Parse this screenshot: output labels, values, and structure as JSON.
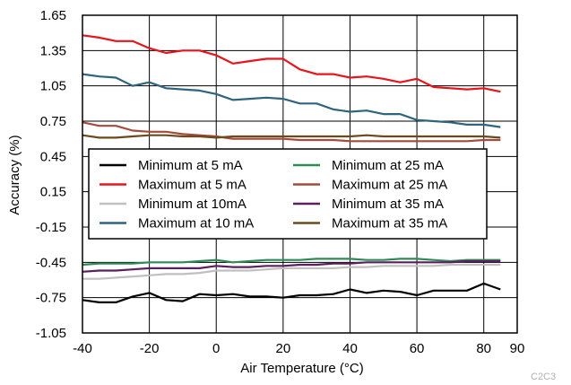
{
  "chart_data": {
    "type": "line",
    "xlabel": "Air Temperature (°C)",
    "ylabel": "Accuracy (%)",
    "xlim": [
      -40,
      90
    ],
    "ylim": [
      -1.05,
      1.65
    ],
    "x_ticks": [
      "-40",
      "-20",
      "0",
      "20",
      "40",
      "60",
      "80",
      "90"
    ],
    "x_tick_values": [
      -40,
      -20,
      0,
      20,
      40,
      60,
      80,
      90
    ],
    "y_ticks": [
      "1.65",
      "1.35",
      "1.05",
      "0.75",
      "0.45",
      "0.15",
      "-0.15",
      "-0.45",
      "-0.75",
      "-1.05"
    ],
    "y_tick_values": [
      1.65,
      1.35,
      1.05,
      0.75,
      0.45,
      0.15,
      -0.15,
      -0.45,
      -0.75,
      -1.05
    ],
    "grid": true,
    "legend_placement": "middle-left",
    "series": [
      {
        "name": "Minimum at 5 mA",
        "color": "#000000",
        "x": [
          -40,
          -35,
          -30,
          -25,
          -20,
          -15,
          -10,
          -5,
          0,
          5,
          10,
          15,
          20,
          25,
          30,
          35,
          40,
          45,
          50,
          55,
          60,
          65,
          70,
          75,
          80,
          85
        ],
        "y": [
          -0.77,
          -0.79,
          -0.79,
          -0.74,
          -0.71,
          -0.77,
          -0.78,
          -0.72,
          -0.73,
          -0.72,
          -0.74,
          -0.74,
          -0.75,
          -0.73,
          -0.73,
          -0.72,
          -0.68,
          -0.71,
          -0.69,
          -0.7,
          -0.73,
          -0.69,
          -0.69,
          -0.69,
          -0.63,
          -0.68
        ]
      },
      {
        "name": "Maximum at 5 mA",
        "color": "#e8141b",
        "x": [
          -40,
          -35,
          -30,
          -25,
          -20,
          -15,
          -10,
          -5,
          0,
          5,
          10,
          15,
          20,
          25,
          30,
          35,
          40,
          45,
          50,
          55,
          60,
          65,
          70,
          75,
          80,
          85
        ],
        "y": [
          1.48,
          1.46,
          1.43,
          1.43,
          1.37,
          1.33,
          1.35,
          1.35,
          1.31,
          1.24,
          1.26,
          1.28,
          1.28,
          1.19,
          1.15,
          1.15,
          1.12,
          1.13,
          1.11,
          1.08,
          1.11,
          1.04,
          1.03,
          1.02,
          1.03,
          1.0
        ]
      },
      {
        "name": "Minimum at 10mA",
        "color": "#c0c0c0",
        "x": [
          -40,
          -35,
          -30,
          -25,
          -20,
          -15,
          -10,
          -5,
          0,
          5,
          10,
          15,
          20,
          25,
          30,
          35,
          40,
          45,
          50,
          55,
          60,
          65,
          70,
          75,
          80,
          85
        ],
        "y": [
          -0.59,
          -0.59,
          -0.58,
          -0.57,
          -0.56,
          -0.55,
          -0.55,
          -0.54,
          -0.52,
          -0.52,
          -0.52,
          -0.51,
          -0.5,
          -0.5,
          -0.5,
          -0.5,
          -0.49,
          -0.49,
          -0.48,
          -0.48,
          -0.48,
          -0.48,
          -0.47,
          -0.47,
          -0.47,
          -0.47
        ]
      },
      {
        "name": "Maximum at 10 mA",
        "color": "#2f6480",
        "x": [
          -40,
          -35,
          -30,
          -25,
          -20,
          -15,
          -10,
          -5,
          0,
          5,
          10,
          15,
          20,
          25,
          30,
          35,
          40,
          45,
          50,
          55,
          60,
          65,
          70,
          75,
          80,
          85
        ],
        "y": [
          1.15,
          1.13,
          1.12,
          1.05,
          1.08,
          1.03,
          1.02,
          1.01,
          0.98,
          0.93,
          0.94,
          0.95,
          0.94,
          0.9,
          0.9,
          0.85,
          0.83,
          0.84,
          0.81,
          0.81,
          0.76,
          0.75,
          0.74,
          0.72,
          0.72,
          0.7
        ]
      },
      {
        "name": "Minimum at 25 mA",
        "color": "#2e8b57",
        "x": [
          -40,
          -35,
          -30,
          -25,
          -20,
          -15,
          -10,
          -5,
          0,
          5,
          10,
          15,
          20,
          25,
          30,
          35,
          40,
          45,
          50,
          55,
          60,
          65,
          70,
          75,
          80,
          85
        ],
        "y": [
          -0.47,
          -0.46,
          -0.46,
          -0.46,
          -0.45,
          -0.45,
          -0.45,
          -0.44,
          -0.43,
          -0.45,
          -0.44,
          -0.43,
          -0.43,
          -0.43,
          -0.42,
          -0.42,
          -0.42,
          -0.43,
          -0.43,
          -0.42,
          -0.42,
          -0.43,
          -0.44,
          -0.43,
          -0.43,
          -0.43
        ]
      },
      {
        "name": "Maximum at 25 mA",
        "color": "#a44a3f",
        "x": [
          -40,
          -35,
          -30,
          -25,
          -20,
          -15,
          -10,
          -5,
          0,
          5,
          10,
          15,
          20,
          25,
          30,
          35,
          40,
          45,
          50,
          55,
          60,
          65,
          70,
          75,
          80,
          85
        ],
        "y": [
          0.74,
          0.71,
          0.71,
          0.67,
          0.66,
          0.66,
          0.64,
          0.63,
          0.62,
          0.6,
          0.6,
          0.6,
          0.6,
          0.59,
          0.59,
          0.59,
          0.58,
          0.58,
          0.58,
          0.58,
          0.58,
          0.58,
          0.58,
          0.58,
          0.59,
          0.59
        ]
      },
      {
        "name": "Minimum at 35 mA",
        "color": "#5c1f5f",
        "x": [
          -40,
          -35,
          -30,
          -25,
          -20,
          -15,
          -10,
          -5,
          0,
          5,
          10,
          15,
          20,
          25,
          30,
          35,
          40,
          45,
          50,
          55,
          60,
          65,
          70,
          75,
          80,
          85
        ],
        "y": [
          -0.53,
          -0.52,
          -0.52,
          -0.51,
          -0.5,
          -0.5,
          -0.5,
          -0.5,
          -0.48,
          -0.49,
          -0.49,
          -0.48,
          -0.48,
          -0.47,
          -0.47,
          -0.46,
          -0.46,
          -0.45,
          -0.45,
          -0.45,
          -0.45,
          -0.45,
          -0.45,
          -0.44,
          -0.44,
          -0.44
        ]
      },
      {
        "name": "Maximum at 35 mA",
        "color": "#6b4a1e",
        "x": [
          -40,
          -35,
          -30,
          -25,
          -20,
          -15,
          -10,
          -5,
          0,
          5,
          10,
          15,
          20,
          25,
          30,
          35,
          40,
          45,
          50,
          55,
          60,
          65,
          70,
          75,
          80,
          85
        ],
        "y": [
          0.63,
          0.61,
          0.61,
          0.62,
          0.63,
          0.63,
          0.62,
          0.62,
          0.61,
          0.62,
          0.62,
          0.62,
          0.62,
          0.62,
          0.62,
          0.62,
          0.62,
          0.63,
          0.62,
          0.62,
          0.62,
          0.62,
          0.62,
          0.62,
          0.62,
          0.61
        ]
      }
    ]
  },
  "watermark": "C2C3"
}
